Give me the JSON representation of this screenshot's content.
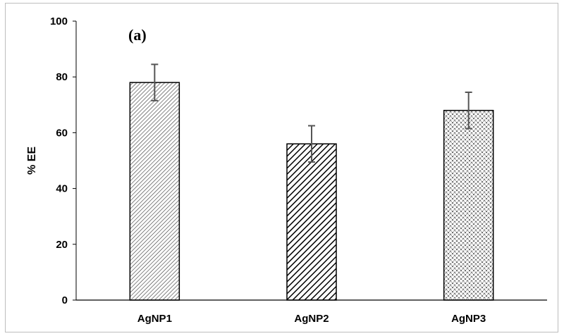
{
  "chart_data": {
    "type": "bar",
    "annotation": "(a)",
    "ylabel": "% EE",
    "xlabel": "",
    "ylim": [
      0,
      100
    ],
    "yticks": [
      0,
      20,
      40,
      60,
      80,
      100
    ],
    "categories": [
      "AgNP1",
      "AgNP2",
      "AgNP3"
    ],
    "values": [
      78,
      56,
      68
    ],
    "errors": [
      6.5,
      6.5,
      6.5
    ],
    "patterns": [
      "diagonal-fine",
      "diagonal-bold",
      "diamond-cross"
    ],
    "grid": false,
    "legend": "none"
  }
}
